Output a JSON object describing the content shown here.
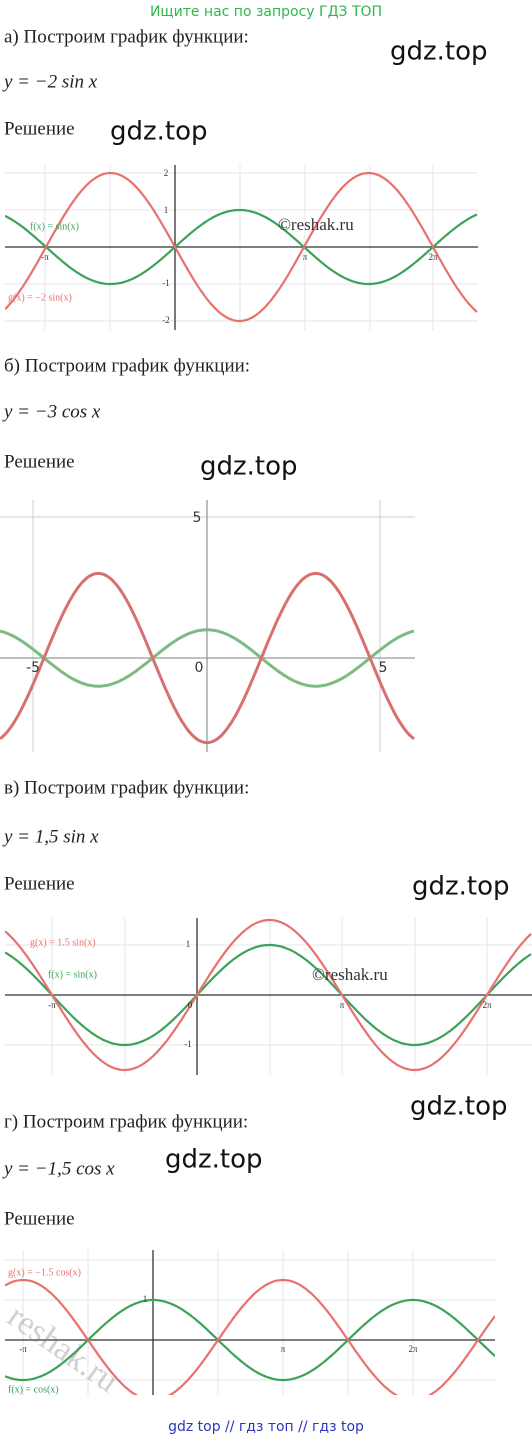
{
  "banner": "Ищите нас по запросу ГДЗ ТОП",
  "watermarks": [
    "gdz.top",
    "gdz.top",
    "gdz.top",
    "gdz.top",
    "gdz.top",
    "gdz.top"
  ],
  "sections": [
    {
      "heading": "а) Построим график функции:",
      "formula": "y = −2 sin x",
      "solution": "Решение",
      "graph": {
        "labels": [
          "f(x) = sin(x)",
          "g(x) = −2 sin(x)",
          "©reshak.ru"
        ],
        "xticks": [
          "-π",
          "π",
          "2π"
        ],
        "yticks": [
          "2",
          "1",
          "-1",
          "-2"
        ]
      }
    },
    {
      "heading": "б) Построим график функции:",
      "formula": "y = −3 cos x",
      "solution": "Решение",
      "graph": {
        "xticks": [
          "-5",
          "0",
          "5"
        ],
        "yticks": [
          "5"
        ]
      }
    },
    {
      "heading": "в) Построим график функции:",
      "formula": "y = 1,5 sin x",
      "solution": "Решение",
      "graph": {
        "labels": [
          "g(x) = 1.5 sin(x)",
          "f(x) = sin(x)",
          "©reshak.ru"
        ],
        "xticks": [
          "-π",
          "0",
          "π",
          "2π"
        ],
        "yticks": [
          "1",
          "-1"
        ]
      }
    },
    {
      "heading": "г) Построим график функции:",
      "formula": "y = −1,5 cos x",
      "solution": "Решение",
      "graph": {
        "labels": [
          "g(x) = −1.5 cos(x)",
          "f(x) = cos(x)",
          "reshak.ru"
        ],
        "xticks": [
          "-π",
          "π",
          "2π"
        ],
        "yticks": [
          "1"
        ]
      }
    }
  ],
  "footer": "gdz top  //  гдз топ  //  гдз top"
}
